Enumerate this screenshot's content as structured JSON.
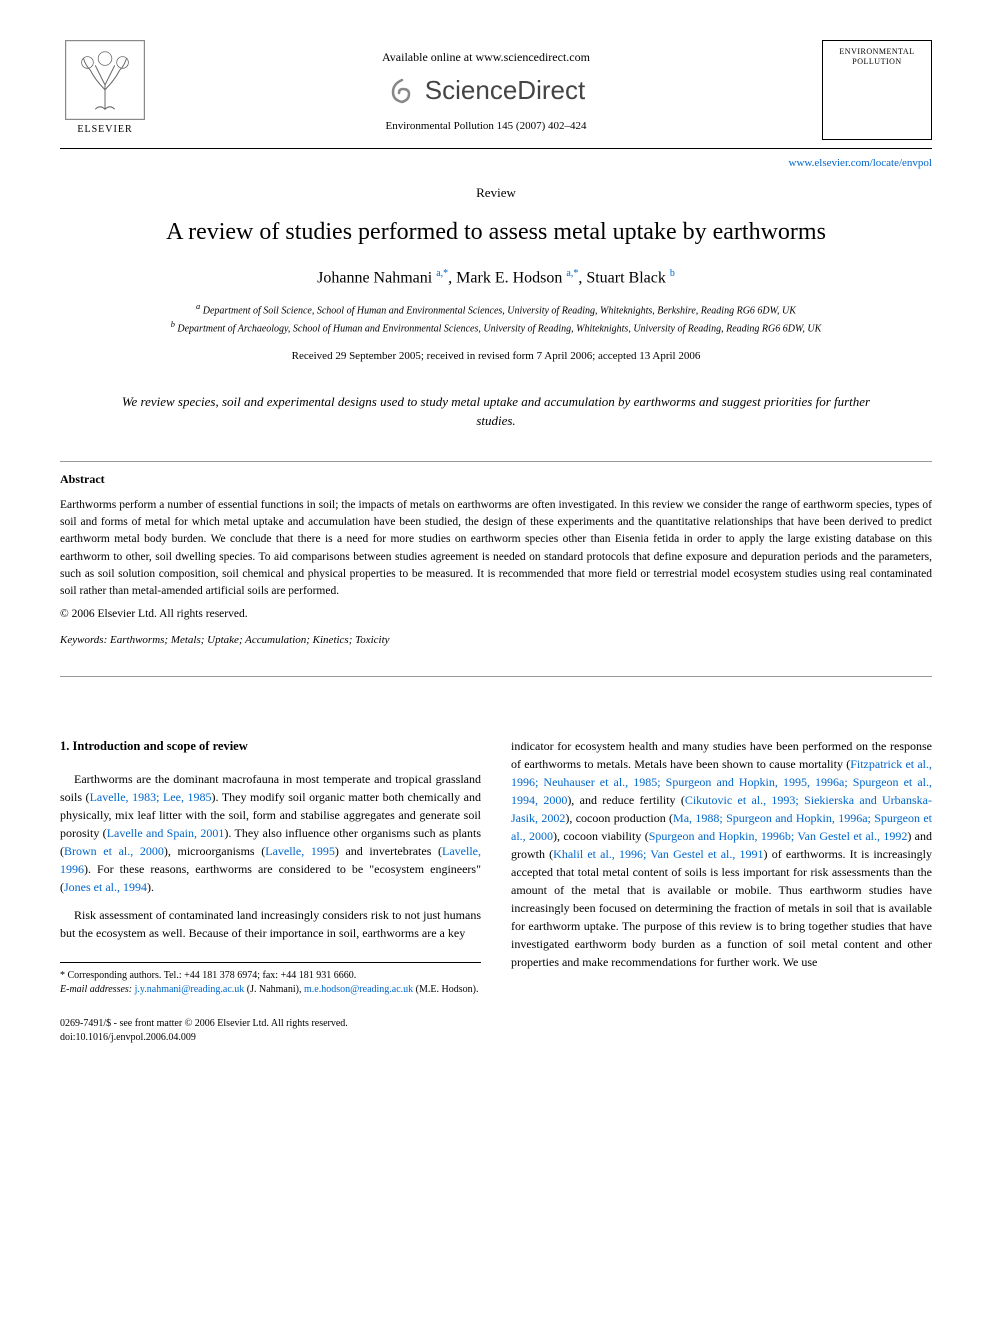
{
  "header": {
    "available_text": "Available online at www.sciencedirect.com",
    "sciencedirect": "ScienceDirect",
    "elsevier": "ELSEVIER",
    "journal_ref": "Environmental Pollution 145 (2007) 402–424",
    "journal_box_title": "ENVIRONMENTAL POLLUTION",
    "journal_link": "www.elsevier.com/locate/envpol"
  },
  "article": {
    "type": "Review",
    "title": "A review of studies performed to assess metal uptake by earthworms",
    "authors_html": "Johanne Nahmani <sup>a,*</sup>, Mark E. Hodson <sup>a,*</sup>, Stuart Black <sup>b</sup>",
    "affiliations": {
      "a": "Department of Soil Science, School of Human and Environmental Sciences, University of Reading, Whiteknights, Berkshire, Reading RG6 6DW, UK",
      "b": "Department of Archaeology, School of Human and Environmental Sciences, University of Reading, Whiteknights, University of Reading, Reading RG6 6DW, UK"
    },
    "dates": "Received 29 September 2005; received in revised form 7 April 2006; accepted 13 April 2006",
    "highlight": "We review species, soil and experimental designs used to study metal uptake and accumulation by earthworms and suggest priorities for further studies."
  },
  "abstract": {
    "heading": "Abstract",
    "text": "Earthworms perform a number of essential functions in soil; the impacts of metals on earthworms are often investigated. In this review we consider the range of earthworm species, types of soil and forms of metal for which metal uptake and accumulation have been studied, the design of these experiments and the quantitative relationships that have been derived to predict earthworm metal body burden. We conclude that there is a need for more studies on earthworm species other than Eisenia fetida in order to apply the large existing database on this earthworm to other, soil dwelling species. To aid comparisons between studies agreement is needed on standard protocols that define exposure and depuration periods and the parameters, such as soil solution composition, soil chemical and physical properties to be measured. It is recommended that more field or terrestrial model ecosystem studies using real contaminated soil rather than metal-amended artificial soils are performed.",
    "copyright": "© 2006 Elsevier Ltd. All rights reserved.",
    "keywords_label": "Keywords:",
    "keywords": "Earthworms; Metals; Uptake; Accumulation; Kinetics; Toxicity"
  },
  "body": {
    "section_heading": "1. Introduction and scope of review",
    "col1_p1_pre": "Earthworms are the dominant macrofauna in most temperate and tropical grassland soils (",
    "col1_p1_ref1": "Lavelle, 1983; Lee, 1985",
    "col1_p1_mid1": "). They modify soil organic matter both chemically and physically, mix leaf litter with the soil, form and stabilise aggregates and generate soil porosity (",
    "col1_p1_ref2": "Lavelle and Spain, 2001",
    "col1_p1_mid2": "). They also influence other organisms such as plants (",
    "col1_p1_ref3": "Brown et al., 2000",
    "col1_p1_mid3": "), microorganisms (",
    "col1_p1_ref4": "Lavelle, 1995",
    "col1_p1_mid4": ") and invertebrates (",
    "col1_p1_ref5": "Lavelle, 1996",
    "col1_p1_mid5": "). For these reasons, earthworms are considered to be \"ecosystem engineers\" (",
    "col1_p1_ref6": "Jones et al., 1994",
    "col1_p1_post": ").",
    "col1_p2": "Risk assessment of contaminated land increasingly considers risk to not just humans but the ecosystem as well. Because of their importance in soil, earthworms are a key",
    "col2_p1_pre": "indicator for ecosystem health and many studies have been performed on the response of earthworms to metals. Metals have been shown to cause mortality (",
    "col2_p1_ref1": "Fitzpatrick et al., 1996; Neuhauser et al., 1985; Spurgeon and Hopkin, 1995, 1996a; Spurgeon et al., 1994, 2000",
    "col2_p1_mid1": "), and reduce fertility (",
    "col2_p1_ref2": "Cikutovic et al., 1993; Siekierska and Urbanska-Jasik, 2002",
    "col2_p1_mid2": "), cocoon production (",
    "col2_p1_ref3": "Ma, 1988; Spurgeon and Hopkin, 1996a; Spurgeon et al., 2000",
    "col2_p1_mid3": "), cocoon viability (",
    "col2_p1_ref4": "Spurgeon and Hopkin, 1996b; Van Gestel et al., 1992",
    "col2_p1_mid4": ") and growth (",
    "col2_p1_ref5": "Khalil et al., 1996; Van Gestel et al., 1991",
    "col2_p1_post": ") of earthworms. It is increasingly accepted that total metal content of soils is less important for risk assessments than the amount of the metal that is available or mobile. Thus earthworm studies have increasingly been focused on determining the fraction of metals in soil that is available for earthworm uptake. The purpose of this review is to bring together studies that have investigated earthworm body burden as a function of soil metal content and other properties and make recommendations for further work. We use"
  },
  "footnotes": {
    "corresponding": "* Corresponding authors. Tel.: +44 181 378 6974; fax: +44 181 931 6660.",
    "email_label": "E-mail addresses:",
    "email1": "j.y.nahmani@reading.ac.uk",
    "email1_name": "(J. Nahmani),",
    "email2": "m.e.hodson@reading.ac.uk",
    "email2_name": "(M.E. Hodson)."
  },
  "footer": {
    "line1": "0269-7491/$ - see front matter © 2006 Elsevier Ltd. All rights reserved.",
    "line2": "doi:10.1016/j.envpol.2006.04.009"
  },
  "colors": {
    "link": "#0066cc",
    "text": "#000000",
    "background": "#ffffff"
  }
}
